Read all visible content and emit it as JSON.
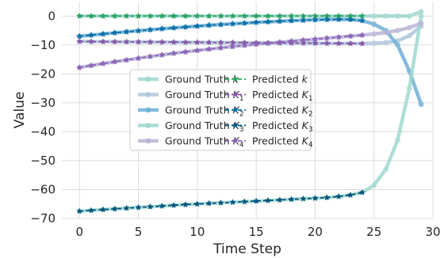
{
  "chart_data": {
    "type": "line",
    "xlabel": "Time Step",
    "ylabel": "Value",
    "xlim": [
      -1.5,
      30
    ],
    "ylim": [
      -70,
      5
    ],
    "xticks": [
      0,
      5,
      10,
      15,
      20,
      25,
      30
    ],
    "yticks": [
      0,
      -10,
      -20,
      -30,
      -40,
      -50,
      -60,
      -70
    ],
    "xtick_labels": [
      "0",
      "5",
      "10",
      "15",
      "20",
      "25",
      "30"
    ],
    "ytick_labels": [
      "0",
      "−10",
      "−20",
      "−30",
      "−40",
      "−50",
      "−60",
      "−70"
    ],
    "grid": true,
    "legend_placement": "center",
    "x": [
      0,
      1,
      2,
      3,
      4,
      5,
      6,
      7,
      8,
      9,
      10,
      11,
      12,
      13,
      14,
      15,
      16,
      17,
      18,
      19,
      20,
      21,
      22,
      23,
      24,
      25,
      26,
      27,
      28,
      29
    ],
    "ground_truth": [
      {
        "name": "Ground Truth k",
        "base": "Ground Truth ",
        "sym": "k",
        "sub": "",
        "color": "#9fd9cf",
        "values": [
          0,
          0,
          0,
          0,
          0,
          0,
          0,
          0,
          0,
          0,
          0,
          0,
          0,
          0,
          0,
          0,
          0,
          0,
          0,
          0,
          0,
          0,
          0,
          0,
          0,
          0,
          0,
          0,
          0,
          1.5
        ]
      },
      {
        "name": "Ground Truth K1",
        "base": "Ground Truth ",
        "sym": "K",
        "sub": "1",
        "color": "#b0c6dc",
        "values": [
          -8.8,
          -8.83,
          -8.86,
          -8.89,
          -8.92,
          -8.95,
          -8.98,
          -9.01,
          -9.04,
          -9.07,
          -9.1,
          -9.13,
          -9.16,
          -9.19,
          -9.22,
          -9.25,
          -9.28,
          -9.31,
          -9.34,
          -9.37,
          -9.4,
          -9.43,
          -9.46,
          -9.49,
          -9.52,
          -9.4,
          -9.2,
          -8.6,
          -6.8,
          -3.5
        ]
      },
      {
        "name": "Ground Truth K2",
        "base": "Ground Truth ",
        "sym": "K",
        "sub": "2",
        "color": "#6fb0d6",
        "values": [
          -7.0,
          -6.6,
          -6.2,
          -5.8,
          -5.45,
          -5.1,
          -4.75,
          -4.4,
          -4.1,
          -3.8,
          -3.5,
          -3.2,
          -2.95,
          -2.7,
          -2.45,
          -2.2,
          -2.0,
          -1.8,
          -1.6,
          -1.45,
          -1.3,
          -1.2,
          -1.15,
          -1.2,
          -1.6,
          -2.8,
          -5.0,
          -10.0,
          -19.0,
          -30.5
        ]
      },
      {
        "name": "Ground Truth K3",
        "base": "Ground Truth ",
        "sym": "K",
        "sub": "3",
        "color": "#9fd9cf",
        "values": [
          -67.5,
          -67.2,
          -66.95,
          -66.7,
          -66.45,
          -66.2,
          -65.95,
          -65.7,
          -65.45,
          -65.2,
          -65.0,
          -64.8,
          -64.6,
          -64.4,
          -64.2,
          -64.0,
          -63.8,
          -63.6,
          -63.4,
          -63.2,
          -63.0,
          -62.8,
          -62.4,
          -61.9,
          -61.0,
          -58.5,
          -53.0,
          -43.0,
          -25.0,
          0.0
        ]
      },
      {
        "name": "Ground Truth K4",
        "base": "Ground Truth ",
        "sym": "K",
        "sub": "4",
        "color": "#b8b4d6",
        "values": [
          -17.8,
          -17.1,
          -16.45,
          -15.8,
          -15.2,
          -14.6,
          -14.0,
          -13.45,
          -12.9,
          -12.4,
          -11.9,
          -11.45,
          -11.0,
          -10.55,
          -10.15,
          -9.75,
          -9.4,
          -9.05,
          -8.7,
          -8.35,
          -8.0,
          -7.65,
          -7.3,
          -6.95,
          -6.6,
          -6.2,
          -5.7,
          -5.0,
          -4.0,
          -2.5
        ]
      }
    ],
    "predicted": [
      {
        "name": "Predicted k",
        "base": "Predicted ",
        "sym": "k",
        "sub": "",
        "color": "#2ca25f",
        "values": [
          0,
          0,
          0,
          0,
          0,
          0,
          0,
          0,
          0,
          0,
          0,
          0,
          0,
          0,
          0,
          0,
          0,
          0,
          0,
          0,
          0,
          0,
          0,
          0,
          0
        ]
      },
      {
        "name": "Predicted K1",
        "base": "Predicted ",
        "sym": "K",
        "sub": "1",
        "color": "#8856a7",
        "values": [
          -8.8,
          -8.83,
          -8.86,
          -8.89,
          -8.92,
          -8.95,
          -8.98,
          -9.01,
          -9.04,
          -9.07,
          -9.1,
          -9.13,
          -9.16,
          -9.19,
          -9.22,
          -9.25,
          -9.28,
          -9.31,
          -9.34,
          -9.37,
          -9.4,
          -9.43,
          -9.46,
          -9.49,
          -9.52
        ]
      },
      {
        "name": "Predicted K2",
        "base": "Predicted ",
        "sym": "K",
        "sub": "2",
        "color": "#0a6fa5",
        "values": [
          -7.0,
          -6.6,
          -6.2,
          -5.8,
          -5.45,
          -5.1,
          -4.75,
          -4.4,
          -4.1,
          -3.8,
          -3.5,
          -3.2,
          -2.95,
          -2.7,
          -2.45,
          -2.2,
          -2.0,
          -1.8,
          -1.6,
          -1.45,
          -1.3,
          -1.2,
          -1.15,
          -1.2,
          -1.6
        ]
      },
      {
        "name": "Predicted K3",
        "base": "Predicted ",
        "sym": "K",
        "sub": "3",
        "color": "#05527d",
        "values": [
          -67.5,
          -67.2,
          -66.95,
          -66.7,
          -66.45,
          -66.2,
          -65.95,
          -65.7,
          -65.45,
          -65.2,
          -65.0,
          -64.8,
          -64.6,
          -64.4,
          -64.2,
          -64.0,
          -63.8,
          -63.6,
          -63.4,
          -63.2,
          -63.0,
          -62.8,
          -62.4,
          -61.9,
          -61.0
        ]
      },
      {
        "name": "Predicted K4",
        "base": "Predicted ",
        "sym": "K",
        "sub": "4",
        "color": "#8c63b8",
        "values": [
          -17.8,
          -17.1,
          -16.45,
          -15.8,
          -15.2,
          -14.6,
          -14.0,
          -13.45,
          -12.9,
          -12.4,
          -11.9,
          -11.45,
          -11.0,
          -10.55,
          -10.15,
          -9.75,
          -9.4,
          -9.05,
          -8.7,
          -8.35,
          -8.0,
          -7.65,
          -7.3,
          -6.95,
          -6.6
        ]
      }
    ]
  }
}
